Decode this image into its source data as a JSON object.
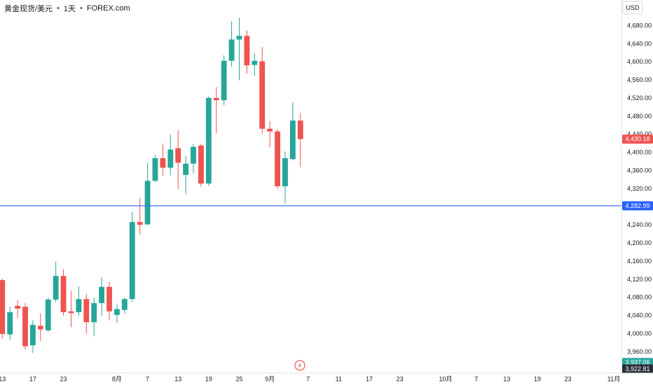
{
  "chart_data": {
    "type": "candlestick",
    "title": "黄金现货/美元",
    "interval": "1天",
    "source": "FOREX.com",
    "currency": "USD",
    "up_color": "#26a69a",
    "down_color": "#ef5350",
    "grid": false,
    "x": [
      0,
      1,
      2,
      3,
      4,
      5,
      6,
      7,
      8,
      9,
      10,
      11,
      12,
      13,
      14,
      15,
      16,
      17,
      18,
      19,
      20,
      21,
      22,
      23,
      24,
      25,
      26,
      27,
      28,
      29,
      30,
      31,
      32,
      33,
      34,
      35,
      36,
      37,
      38,
      39
    ],
    "open": [
      4119,
      3999,
      4062,
      4060,
      3975,
      4018,
      4008,
      4076,
      4128,
      4050,
      4048,
      4077,
      4026,
      4068,
      4104,
      4042,
      4053,
      4077,
      4247,
      4242,
      4338,
      4388,
      4367,
      4410,
      4351,
      4376,
      4416,
      4332,
      4521,
      4516,
      4603,
      4650,
      4658,
      4594,
      4602,
      4453,
      4447,
      4326,
      4386,
      4471
    ],
    "high": [
      4122,
      4060,
      4075,
      4068,
      4030,
      4045,
      4080,
      4160,
      4143,
      4095,
      4105,
      4088,
      4080,
      4125,
      4115,
      4065,
      4080,
      4270,
      4300,
      4377,
      4395,
      4420,
      4440,
      4450,
      4392,
      4420,
      4420,
      4525,
      4545,
      4615,
      4690,
      4698,
      4670,
      4620,
      4633,
      4470,
      4452,
      4403,
      4511,
      4488
    ],
    "low": [
      3990,
      3987,
      4035,
      3965,
      3958,
      3985,
      4005,
      4070,
      4040,
      4015,
      4040,
      4000,
      3995,
      4040,
      4030,
      4025,
      4045,
      4070,
      4220,
      4240,
      4335,
      4350,
      4350,
      4320,
      4308,
      4355,
      4325,
      4327,
      4443,
      4505,
      4590,
      4560,
      4575,
      4570,
      4443,
      4412,
      4321,
      4288,
      4383,
      4368
    ],
    "close": [
      4000,
      4048,
      4056,
      3973,
      4020,
      4010,
      4076,
      4128,
      4048,
      4046,
      4077,
      4026,
      4068,
      4104,
      4050,
      4055,
      4077,
      4247,
      4241,
      4338,
      4388,
      4367,
      4407,
      4378,
      4376,
      4413,
      4332,
      4521,
      4516,
      4603,
      4650,
      4658,
      4593,
      4603,
      4453,
      4447,
      4326,
      4388,
      4471,
      4430.18
    ],
    "xlim": [
      -0.3,
      81
    ],
    "xticks": [
      {
        "value": 0,
        "label": "13"
      },
      {
        "value": 4,
        "label": "17"
      },
      {
        "value": 8,
        "label": "23"
      },
      {
        "value": 15,
        "label": "8月"
      },
      {
        "value": 19,
        "label": "7"
      },
      {
        "value": 23,
        "label": "13"
      },
      {
        "value": 27,
        "label": "19"
      },
      {
        "value": 31,
        "label": "25"
      },
      {
        "value": 35,
        "label": "9月"
      },
      {
        "value": 40,
        "label": "7"
      },
      {
        "value": 44,
        "label": "11"
      },
      {
        "value": 48,
        "label": "17"
      },
      {
        "value": 52,
        "label": "23"
      },
      {
        "value": 58,
        "label": "10月"
      },
      {
        "value": 62,
        "label": "7"
      },
      {
        "value": 66,
        "label": "13"
      },
      {
        "value": 70,
        "label": "19"
      },
      {
        "value": 74,
        "label": "23"
      },
      {
        "value": 80,
        "label": "11月"
      }
    ],
    "ylim": [
      3913.6,
      4737.2
    ],
    "yticks": [
      {
        "value": 3960,
        "label": "3,960.00"
      },
      {
        "value": 4000,
        "label": "4,000.00"
      },
      {
        "value": 4040,
        "label": "4,040.00"
      },
      {
        "value": 4080,
        "label": "4,080.00"
      },
      {
        "value": 4120,
        "label": "4,120.00"
      },
      {
        "value": 4160,
        "label": "4,160.00"
      },
      {
        "value": 4200,
        "label": "4,200.00"
      },
      {
        "value": 4240,
        "label": "4,240.00"
      },
      {
        "value": 4280,
        "label": "4,280.00"
      },
      {
        "value": 4320,
        "label": "4,320.00"
      },
      {
        "value": 4360,
        "label": "4,360.00"
      },
      {
        "value": 4400,
        "label": "4,400.00"
      },
      {
        "value": 4440,
        "label": "4,440.00"
      },
      {
        "value": 4480,
        "label": "4,480.00"
      },
      {
        "value": 4520,
        "label": "4,520.00"
      },
      {
        "value": 4560,
        "label": "4,560.00"
      },
      {
        "value": 4600,
        "label": "4,600.00"
      },
      {
        "value": 4640,
        "label": "4,640.00"
      },
      {
        "value": 4680,
        "label": "4,680.00"
      }
    ],
    "price_lines": [
      {
        "value": 4430.18,
        "label": "4,430.18",
        "color": "#ef5350",
        "line": false
      },
      {
        "value": 4282.99,
        "label": "4,282.99",
        "color": "#2962ff",
        "line": true
      },
      {
        "value": 3937.06,
        "label": "3,937.06",
        "color": "#26a69a",
        "line": false
      },
      {
        "value": 3922.81,
        "label": "3,922.81",
        "color": "#2a2e39",
        "line": false
      }
    ]
  }
}
